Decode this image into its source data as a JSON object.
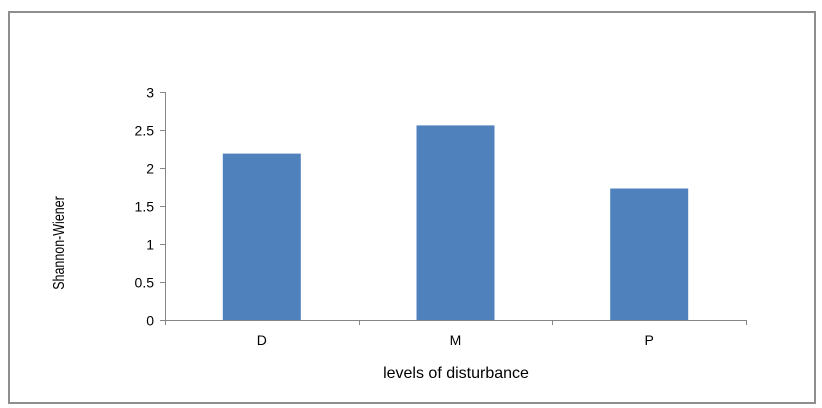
{
  "chart_data": {
    "type": "bar",
    "categories": [
      "D",
      "M",
      "P"
    ],
    "values": [
      2.19,
      2.56,
      1.73
    ],
    "title": "",
    "xlabel": "levels of disturbance",
    "ylabel": "Shannon-Wiener",
    "ylim": [
      0,
      3
    ],
    "yticks": [
      "0",
      "0.5",
      "1",
      "1.5",
      "2",
      "2.5",
      "3"
    ],
    "grid": false,
    "legend": "none",
    "bar_color": "#4f81bd",
    "axis_color": "#868686"
  }
}
